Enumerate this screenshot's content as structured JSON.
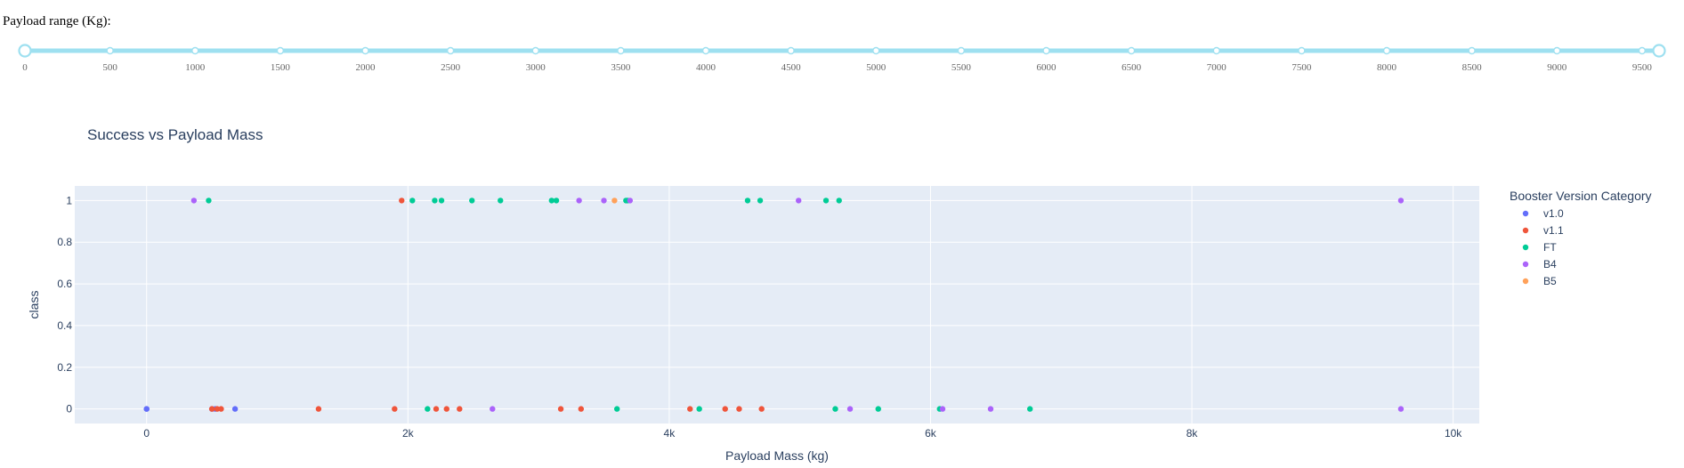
{
  "slider": {
    "label": "Payload range (Kg):",
    "min": 0,
    "max": 9600,
    "value": [
      0,
      9600
    ],
    "marks": [
      0,
      500,
      1000,
      1500,
      2000,
      2500,
      3000,
      3500,
      4000,
      4500,
      5000,
      5500,
      6000,
      6500,
      7000,
      7500,
      8000,
      8500,
      9000,
      9500
    ],
    "track_color": "#9ee0f0",
    "handle_color": "#9ee0f0"
  },
  "chart_data": {
    "type": "scatter",
    "title": "Success vs Payload Mass",
    "xlabel": "Payload Mass (kg)",
    "ylabel": "class",
    "xlim": [
      -550,
      10200
    ],
    "ylim": [
      -0.07,
      1.07
    ],
    "x_ticks": [
      0,
      2000,
      4000,
      6000,
      8000,
      10000
    ],
    "x_tick_labels": [
      "0",
      "2k",
      "4k",
      "6k",
      "8k",
      "10k"
    ],
    "y_ticks": [
      0,
      0.2,
      0.4,
      0.6,
      0.8,
      1
    ],
    "y_tick_labels": [
      "0",
      "0.2",
      "0.4",
      "0.6",
      "0.8",
      "1"
    ],
    "grid": true,
    "legend_title": "Booster Version Category",
    "legend_position": "right",
    "background": "#e5ecf6",
    "series": [
      {
        "name": "v1.0",
        "color": "#636efa",
        "points": [
          [
            0,
            0
          ],
          [
            0,
            0
          ],
          [
            525,
            0
          ],
          [
            500,
            0
          ],
          [
            677,
            0
          ]
        ]
      },
      {
        "name": "v1.1",
        "color": "#ef553b",
        "points": [
          [
            500,
            0
          ],
          [
            540,
            0
          ],
          [
            570,
            0
          ],
          [
            1316,
            0
          ],
          [
            1898,
            0
          ],
          [
            1952,
            1
          ],
          [
            2216,
            0
          ],
          [
            2296,
            0
          ],
          [
            2395,
            0
          ],
          [
            3170,
            0
          ],
          [
            3325,
            0
          ],
          [
            4159,
            0
          ],
          [
            4428,
            0
          ],
          [
            4535,
            0
          ],
          [
            4707,
            0
          ]
        ]
      },
      {
        "name": "FT",
        "color": "#00cc96",
        "points": [
          [
            475,
            1
          ],
          [
            2034,
            1
          ],
          [
            2150,
            0
          ],
          [
            2205,
            1
          ],
          [
            2257,
            1
          ],
          [
            2490,
            1
          ],
          [
            2708,
            1
          ],
          [
            3100,
            1
          ],
          [
            3136,
            1
          ],
          [
            3600,
            0
          ],
          [
            3669,
            1
          ],
          [
            3681,
            1
          ],
          [
            4230,
            0
          ],
          [
            4600,
            1
          ],
          [
            4696,
            1
          ],
          [
            5200,
            1
          ],
          [
            5300,
            1
          ],
          [
            5271,
            0
          ],
          [
            5600,
            0
          ],
          [
            6070,
            0
          ],
          [
            6761,
            0
          ]
        ]
      },
      {
        "name": "B4",
        "color": "#ab63fa",
        "points": [
          [
            362,
            1
          ],
          [
            2647,
            0
          ],
          [
            3310,
            1
          ],
          [
            3500,
            1
          ],
          [
            3700,
            1
          ],
          [
            4990,
            1
          ],
          [
            5384,
            0
          ],
          [
            6092,
            0
          ],
          [
            6460,
            0
          ],
          [
            9600,
            1
          ],
          [
            9600,
            0
          ]
        ]
      },
      {
        "name": "B5",
        "color": "#ffa15a",
        "points": [
          [
            3581,
            1
          ]
        ]
      }
    ]
  }
}
